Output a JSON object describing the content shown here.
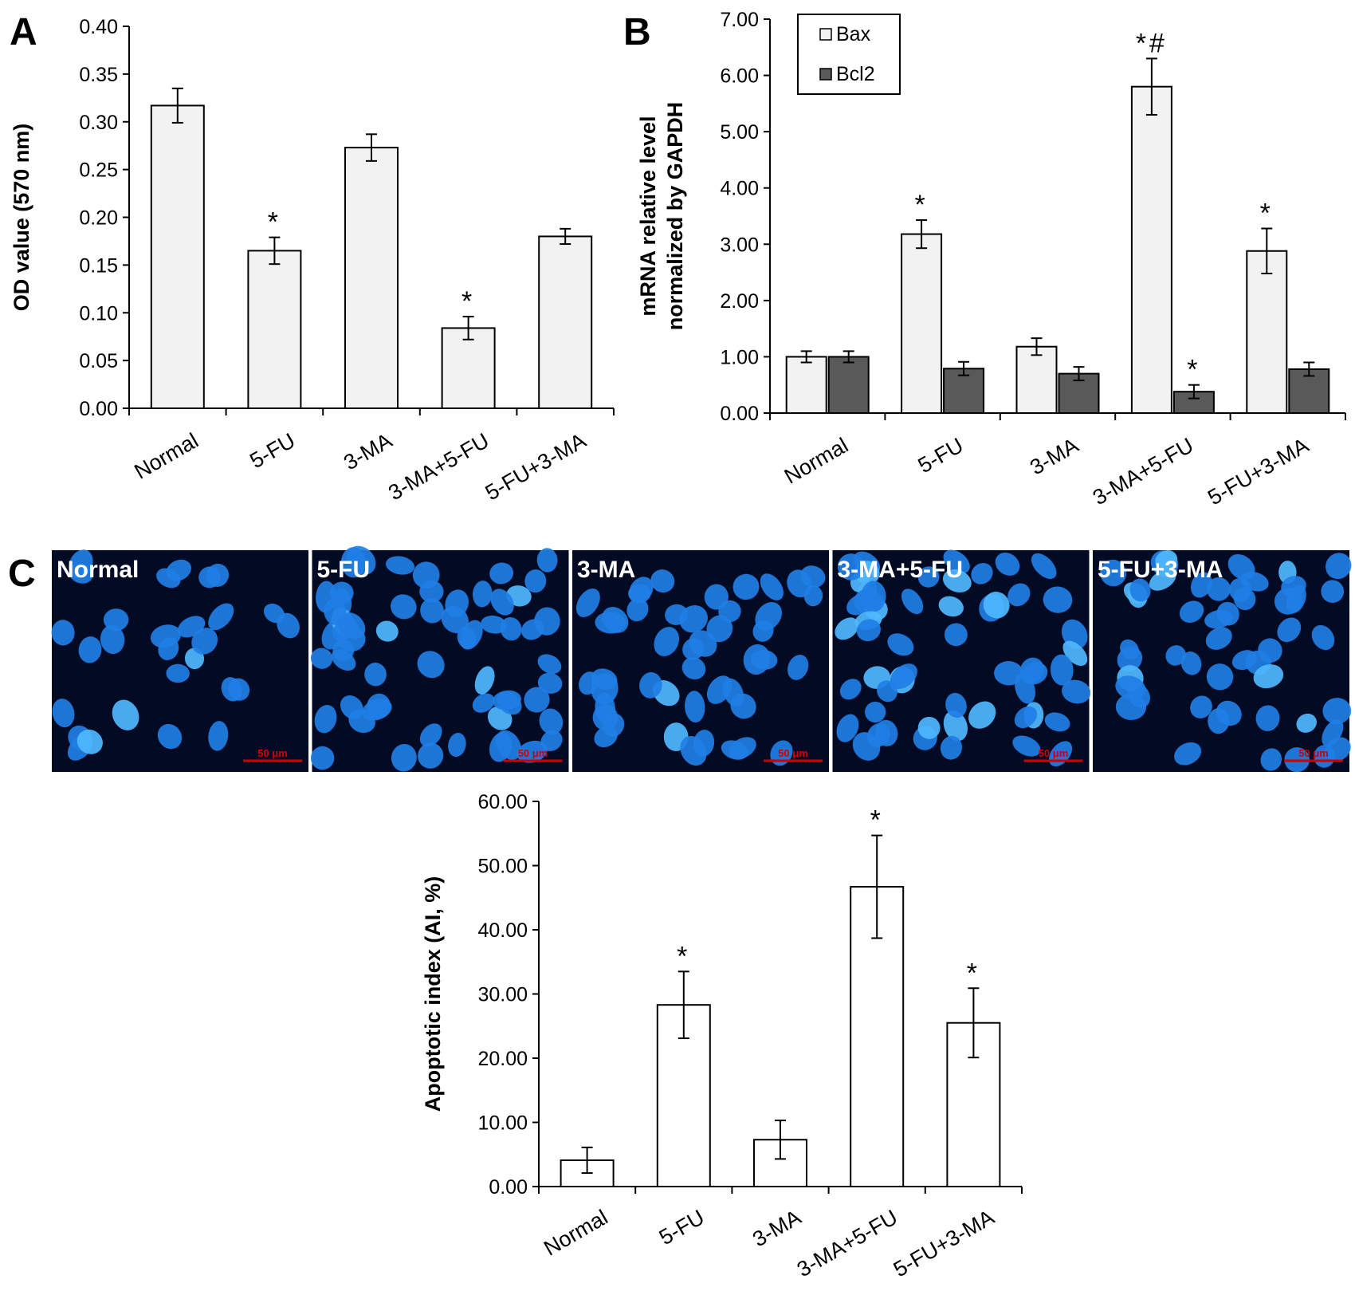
{
  "panels": {
    "A": {
      "letter": "A"
    },
    "B": {
      "letter": "B"
    },
    "C": {
      "letter": "C"
    }
  },
  "microscopy": {
    "images": [
      {
        "label": "Normal",
        "scale": "50 μm"
      },
      {
        "label": "5-FU",
        "scale": "50 μm"
      },
      {
        "label": "3-MA",
        "scale": "50 μm"
      },
      {
        "label": "3-MA+5-FU",
        "scale": "50 μm"
      },
      {
        "label": "5-FU+3-MA",
        "scale": "50 μm"
      }
    ],
    "colors": {
      "background": "#020a24",
      "nucleus": "#1f7fe6",
      "nucleus_bright": "#4fb8ff",
      "scale_bar": "#d00000"
    }
  },
  "colors": {
    "bar_light": "#f2f2f2",
    "bar_dark": "#595959",
    "bar_white": "#ffffff"
  },
  "chart_data": [
    {
      "panel": "A",
      "type": "bar",
      "categories": [
        "Normal",
        "5-FU",
        "3-MA",
        "3-MA+5-FU",
        "5-FU+3-MA"
      ],
      "values": [
        0.317,
        0.165,
        0.273,
        0.084,
        0.18
      ],
      "errors": [
        0.018,
        0.014,
        0.014,
        0.012,
        0.008
      ],
      "annotations": [
        "",
        "*",
        "",
        "*",
        ""
      ],
      "ylabel": "OD value (570 nm)",
      "ylim": [
        0,
        0.4
      ],
      "yticks": [
        "0.00",
        "0.05",
        "0.10",
        "0.15",
        "0.20",
        "0.25",
        "0.30",
        "0.35",
        "0.40"
      ],
      "grid": false
    },
    {
      "panel": "B",
      "type": "bar",
      "categories": [
        "Normal",
        "5-FU",
        "3-MA",
        "3-MA+5-FU",
        "5-FU+3-MA"
      ],
      "series": [
        {
          "name": "Bax",
          "values": [
            1.0,
            3.18,
            1.18,
            5.8,
            2.88
          ],
          "errors": [
            0.1,
            0.25,
            0.15,
            0.5,
            0.4
          ],
          "annotations": [
            "",
            "*",
            "",
            "*#",
            "*"
          ]
        },
        {
          "name": "Bcl2",
          "values": [
            1.0,
            0.79,
            0.7,
            0.38,
            0.78
          ],
          "errors": [
            0.1,
            0.12,
            0.12,
            0.12,
            0.12
          ],
          "annotations": [
            "",
            "",
            "",
            "*",
            ""
          ]
        }
      ],
      "ylabel": "mRNA relative level normalized by GAPDH",
      "ylabel_lines": [
        "mRNA relative level",
        "normalized by GAPDH"
      ],
      "ylim": [
        0,
        7
      ],
      "yticks": [
        "0.00",
        "1.00",
        "2.00",
        "3.00",
        "4.00",
        "5.00",
        "6.00",
        "7.00"
      ],
      "legend": "top-left",
      "grid": false
    },
    {
      "panel": "C",
      "type": "bar",
      "categories": [
        "Normal",
        "5-FU",
        "3-MA",
        "3-MA+5-FU",
        "5-FU+3-MA"
      ],
      "values": [
        4.1,
        28.3,
        7.3,
        46.7,
        25.5
      ],
      "errors": [
        2.0,
        5.2,
        3.0,
        8.0,
        5.4
      ],
      "annotations": [
        "",
        "*",
        "",
        "*",
        "*"
      ],
      "ylabel": "Apoptotic index (AI, %)",
      "ylim": [
        0,
        60
      ],
      "yticks": [
        "0.00",
        "10.00",
        "20.00",
        "30.00",
        "40.00",
        "50.00",
        "60.00"
      ],
      "grid": false
    }
  ]
}
